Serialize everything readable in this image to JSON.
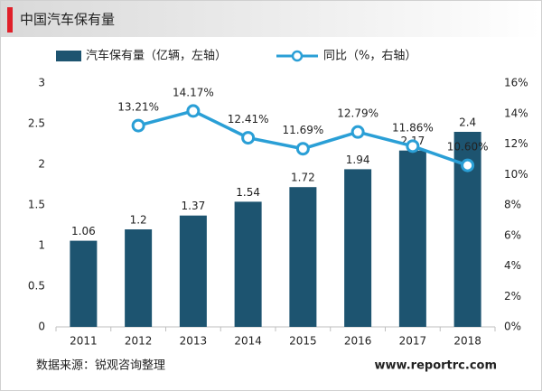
{
  "chart_data": {
    "type": "bar_line",
    "title": "中国汽车保有量",
    "categories": [
      "2011",
      "2012",
      "2013",
      "2014",
      "2015",
      "2016",
      "2017",
      "2018"
    ],
    "series": [
      {
        "name": "汽车保有量（亿辆，左轴）",
        "color": "#1d5470",
        "type": "bar",
        "axis": "y",
        "values": [
          1.06,
          1.2,
          1.37,
          1.54,
          1.72,
          1.94,
          2.17,
          2.4
        ]
      },
      {
        "name": "同比（%，右轴）",
        "color": "#2a9fd6",
        "type": "line",
        "axis": "y2",
        "values": [
          null,
          13.21,
          14.17,
          12.41,
          11.69,
          12.79,
          11.86,
          10.6
        ],
        "value_labels": [
          null,
          "13.21%",
          "14.17%",
          "12.41%",
          "11.69%",
          "12.79%",
          "11.86%",
          "10.60%"
        ]
      }
    ],
    "ylim": [
      0,
      3
    ],
    "yticks": [
      0,
      0.5,
      1,
      1.5,
      2,
      2.5,
      3
    ],
    "y2lim": [
      0,
      16
    ],
    "y2ticks": [
      {
        "value": 0,
        "label": "0%"
      },
      {
        "value": 2,
        "label": "2%"
      },
      {
        "value": 4,
        "label": "4%"
      },
      {
        "value": 6,
        "label": "6%"
      },
      {
        "value": 8,
        "label": "8%"
      },
      {
        "value": 10,
        "label": "10%"
      },
      {
        "value": 12,
        "label": "12%"
      },
      {
        "value": 14,
        "label": "14%"
      },
      {
        "value": 16,
        "label": "16%"
      }
    ],
    "grid": false,
    "source": "数据来源：锐观咨询整理",
    "website": "www.reportrc.com"
  }
}
